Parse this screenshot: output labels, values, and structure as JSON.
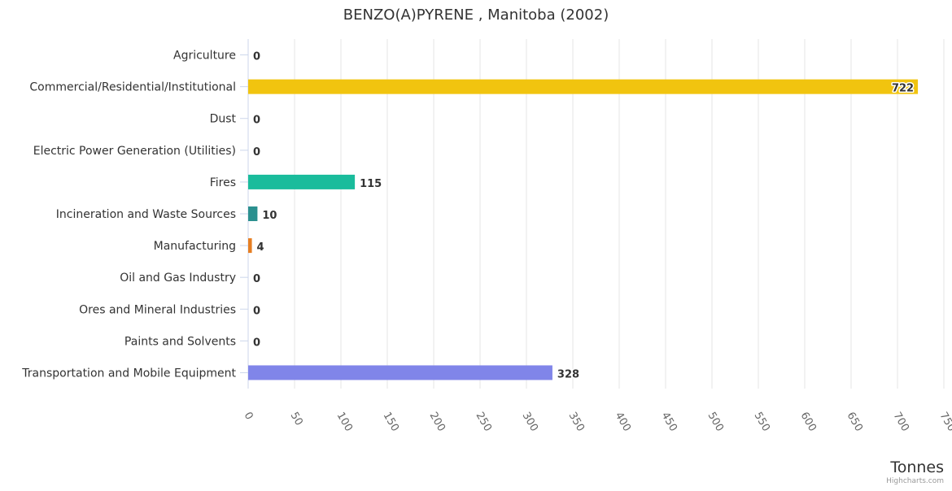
{
  "chart_data": {
    "type": "bar",
    "orientation": "horizontal",
    "title": "BENZO(A)PYRENE , Manitoba (2002)",
    "xlabel": "Tonnes",
    "ylabel": "",
    "categories": [
      "Agriculture",
      "Commercial/Residential/Institutional",
      "Dust",
      "Electric Power Generation (Utilities)",
      "Fires",
      "Incineration and Waste Sources",
      "Manufacturing",
      "Oil and Gas Industry",
      "Ores and Mineral Industries",
      "Paints and Solvents",
      "Transportation and Mobile Equipment"
    ],
    "values": [
      0,
      722,
      0,
      0,
      115,
      10,
      4,
      0,
      0,
      0,
      328
    ],
    "data_labels": [
      "0",
      "722",
      "0",
      "0",
      "115",
      "10",
      "4",
      "0",
      "0",
      "0",
      "328"
    ],
    "colors": [
      "#2b908f",
      "#f1c40f",
      "#2b908f",
      "#2b908f",
      "#1abc9c",
      "#2b908f",
      "#e67e22",
      "#2b908f",
      "#2b908f",
      "#2b908f",
      "#8085e9"
    ],
    "xlim": [
      0,
      750
    ],
    "ticks": [
      0,
      50,
      100,
      150,
      200,
      250,
      300,
      350,
      400,
      450,
      500,
      550,
      600,
      650,
      700,
      750
    ],
    "tick_labels": [
      "0",
      "50",
      "100",
      "150",
      "200",
      "250",
      "300",
      "350",
      "400",
      "450",
      "500",
      "550",
      "600",
      "650",
      "700",
      "750"
    ],
    "grid": true,
    "legend": "none"
  },
  "credits": "Highcharts.com",
  "colors": {
    "grid": "#e6e6e6",
    "axis": "#ccd6eb",
    "text": "#333333",
    "tick_text": "#666666",
    "credits": "#999999"
  }
}
